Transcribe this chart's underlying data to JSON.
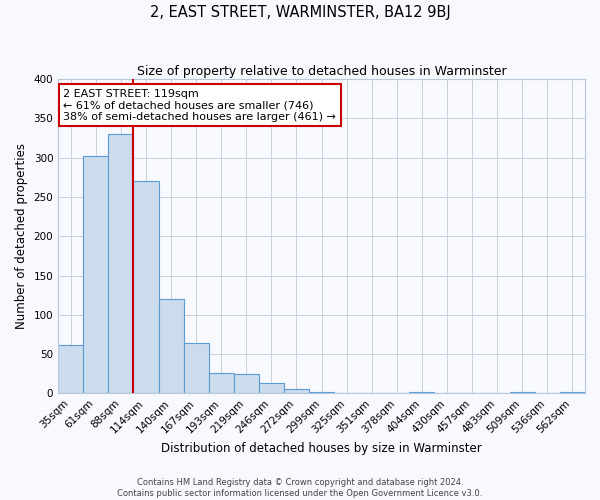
{
  "title": "2, EAST STREET, WARMINSTER, BA12 9BJ",
  "subtitle": "Size of property relative to detached houses in Warminster",
  "xlabel": "Distribution of detached houses by size in Warminster",
  "ylabel": "Number of detached properties",
  "footer_line1": "Contains HM Land Registry data © Crown copyright and database right 2024.",
  "footer_line2": "Contains public sector information licensed under the Open Government Licence v3.0.",
  "bin_labels": [
    "35sqm",
    "61sqm",
    "88sqm",
    "114sqm",
    "140sqm",
    "167sqm",
    "193sqm",
    "219sqm",
    "246sqm",
    "272sqm",
    "299sqm",
    "325sqm",
    "351sqm",
    "378sqm",
    "404sqm",
    "430sqm",
    "457sqm",
    "483sqm",
    "509sqm",
    "536sqm",
    "562sqm"
  ],
  "bar_values": [
    62,
    302,
    330,
    270,
    120,
    64,
    26,
    24,
    13,
    5,
    2,
    0,
    0,
    0,
    2,
    0,
    0,
    0,
    2,
    0,
    2
  ],
  "bar_color": "#ccdcec",
  "bar_edge_color": "#5b9bd5",
  "property_line_index": 3,
  "annotation_text_line1": "2 EAST STREET: 119sqm",
  "annotation_text_line2": "← 61% of detached houses are smaller (746)",
  "annotation_text_line3": "38% of semi-detached houses are larger (461) →",
  "annotation_box_color": "#ffffff",
  "annotation_box_edge": "#cc0000",
  "property_line_color": "#cc0000",
  "ylim": [
    0,
    400
  ],
  "yticks": [
    0,
    50,
    100,
    150,
    200,
    250,
    300,
    350,
    400
  ],
  "background_color": "#f8f8ff",
  "grid_color": "#c8d0dc",
  "title_fontsize": 10.5,
  "subtitle_fontsize": 9,
  "axis_label_fontsize": 8.5,
  "tick_fontsize": 7.5,
  "footer_fontsize": 6.0
}
